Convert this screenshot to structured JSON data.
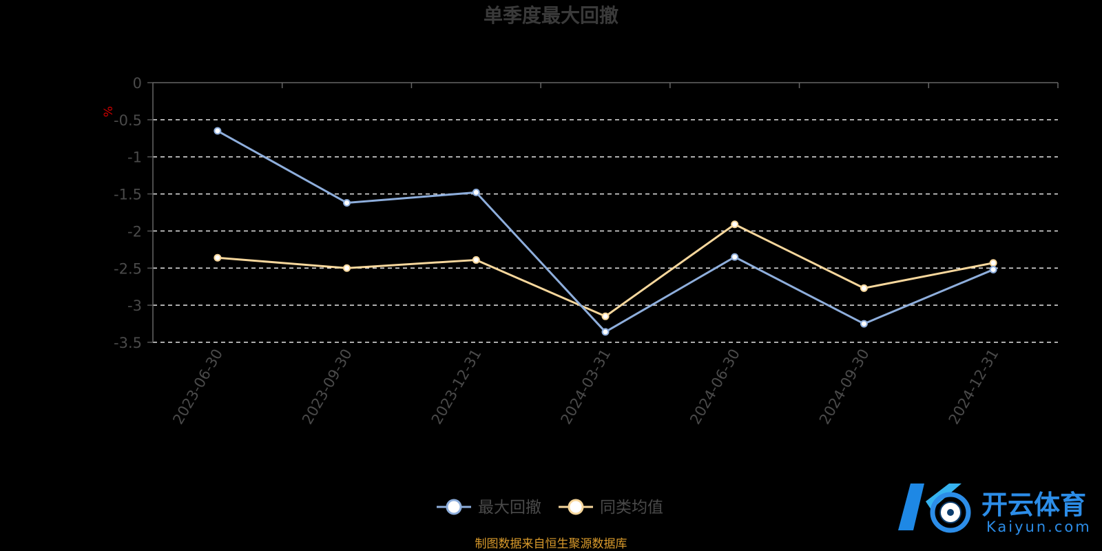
{
  "chart_data": {
    "type": "line",
    "title": "单季度最大回撤",
    "ylabel": "%",
    "categories": [
      "2023-06-30",
      "2023-09-30",
      "2023-12-31",
      "2024-03-31",
      "2024-06-30",
      "2024-09-30",
      "2024-12-31"
    ],
    "ylim": [
      -3.5,
      0
    ],
    "yticks": [
      "0",
      "-0.5",
      "-1",
      "-1.5",
      "-2",
      "-2.5",
      "-3",
      "-3.5"
    ],
    "grid": "dashed horizontal",
    "legend_position": "bottom-center",
    "series": [
      {
        "name": "最大回撤",
        "color": "#8eaedc",
        "values": [
          -0.65,
          -1.62,
          -1.48,
          -3.36,
          -2.35,
          -3.25,
          -2.52
        ]
      },
      {
        "name": "同类均值",
        "color": "#f7d79c",
        "values": [
          -2.36,
          -2.5,
          -2.39,
          -3.15,
          -1.91,
          -2.77,
          -2.43
        ]
      }
    ]
  },
  "source_note": "制图数据来自恒生聚源数据库",
  "watermark": {
    "cn": "开云体育",
    "en": "Kaiyun.com"
  }
}
